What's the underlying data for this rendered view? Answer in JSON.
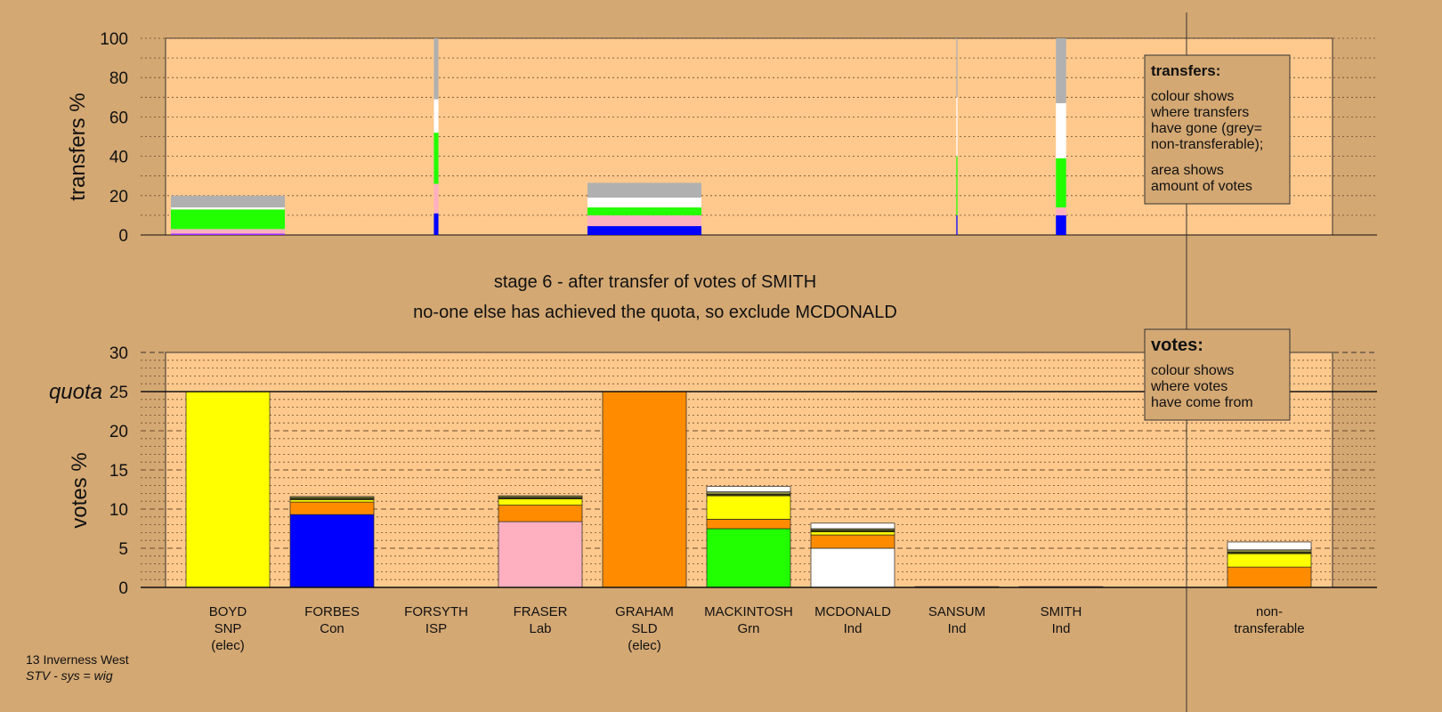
{
  "stage": {
    "line1": "stage 6 - after transfer of votes of SMITH",
    "line2": "no-one else has achieved the quota, so exclude MCDONALD"
  },
  "footer": {
    "line1": "13 Inverness West",
    "line2": "STV - sys = wig"
  },
  "legend_transfers": {
    "title": "transfers:",
    "lines1": [
      "colour shows",
      "where transfers",
      "have gone (grey=",
      "non-transferable);"
    ],
    "lines2": [
      "area shows",
      "amount of votes"
    ]
  },
  "legend_votes": {
    "title": "votes:",
    "lines": [
      "colour shows",
      "where votes",
      "have come from"
    ]
  },
  "colors": {
    "page_bg": "#d4a873",
    "plot_bg": "#ffc98d",
    "SNP": "#ffff00",
    "Con": "#0000ff",
    "ISP": "#9b30ff",
    "Lab": "#ffb0c0",
    "SLD": "#ff8c00",
    "Grn": "#22ff00",
    "Ind": "#ffffff",
    "Ind2": "#3a3a00",
    "Ind3": "#8b8b40",
    "nontransferable": "#b0b0b0"
  },
  "chart_data": [
    {
      "type": "bar",
      "chart": "votes",
      "ylabel": "votes %",
      "ylim": [
        0,
        30
      ],
      "yticks": [
        0,
        5,
        10,
        15,
        20,
        25,
        30
      ],
      "quota": 25,
      "quota_label": "quota",
      "categories": [
        {
          "name": "BOYD",
          "party": "SNP",
          "note": "(elec)"
        },
        {
          "name": "FORBES",
          "party": "Con",
          "note": ""
        },
        {
          "name": "FORSYTH",
          "party": "ISP",
          "note": ""
        },
        {
          "name": "FRASER",
          "party": "Lab",
          "note": ""
        },
        {
          "name": "GRAHAM",
          "party": "SLD",
          "note": "(elec)"
        },
        {
          "name": "MACKINTOSH",
          "party": "Grn",
          "note": ""
        },
        {
          "name": "MCDONALD",
          "party": "Ind",
          "note": ""
        },
        {
          "name": "SANSUM",
          "party": "Ind",
          "note": ""
        },
        {
          "name": "SMITH",
          "party": "Ind",
          "note": ""
        },
        {
          "name": "non-",
          "party": "transferable",
          "note": ""
        }
      ],
      "stacks": [
        [
          {
            "from": "SNP",
            "value": 25.0
          }
        ],
        [
          {
            "from": "Con",
            "value": 9.3
          },
          {
            "from": "SLD",
            "value": 1.6
          },
          {
            "from": "SNP",
            "value": 0.3
          },
          {
            "from": "Ind2",
            "value": 0.2
          },
          {
            "from": "Ind3",
            "value": 0.2
          }
        ],
        [],
        [
          {
            "from": "Lab",
            "value": 8.4
          },
          {
            "from": "SLD",
            "value": 2.1
          },
          {
            "from": "SNP",
            "value": 0.8
          },
          {
            "from": "Ind2",
            "value": 0.2
          },
          {
            "from": "Ind3",
            "value": 0.2
          }
        ],
        [
          {
            "from": "SLD",
            "value": 25.0
          }
        ],
        [
          {
            "from": "Grn",
            "value": 7.5
          },
          {
            "from": "SLD",
            "value": 1.2
          },
          {
            "from": "SNP",
            "value": 3.0
          },
          {
            "from": "Ind2",
            "value": 0.2
          },
          {
            "from": "Ind3",
            "value": 0.3
          },
          {
            "from": "Ind",
            "value": 0.7
          }
        ],
        [
          {
            "from": "Ind",
            "value": 5.0
          },
          {
            "from": "SLD",
            "value": 1.7
          },
          {
            "from": "SNP",
            "value": 0.4
          },
          {
            "from": "Ind2",
            "value": 0.2
          },
          {
            "from": "Ind3",
            "value": 0.2
          },
          {
            "from": "Ind",
            "value": 0.7
          }
        ],
        [
          {
            "from": "Ind",
            "value": 0.1
          }
        ],
        [
          {
            "from": "Ind",
            "value": 0.1
          }
        ],
        [
          {
            "from": "SLD",
            "value": 2.6
          },
          {
            "from": "SNP",
            "value": 1.7
          },
          {
            "from": "Ind2",
            "value": 0.2
          },
          {
            "from": "Ind3",
            "value": 0.3
          },
          {
            "from": "Ind",
            "value": 1.0
          }
        ]
      ]
    },
    {
      "type": "bar",
      "chart": "transfers",
      "ylabel": "transfers %",
      "ylim": [
        0,
        100
      ],
      "yticks": [
        0,
        20,
        40,
        60,
        80,
        100
      ],
      "transfers": [
        {
          "candidate": "BOYD",
          "width_share": 1.0,
          "segments": [
            {
              "to": "ISP",
              "value": 0.7
            },
            {
              "to": "Lab",
              "value": 2.3
            },
            {
              "to": "Grn",
              "value": 10.0
            },
            {
              "to": "Ind",
              "value": 1.0
            },
            {
              "to": "nontransferable",
              "value": 6.0
            }
          ]
        },
        {
          "candidate": "FORSYTH",
          "width_share": 0.04,
          "segments": [
            {
              "to": "Con",
              "value": 11.0
            },
            {
              "to": "Lab",
              "value": 15.0
            },
            {
              "to": "Grn",
              "value": 26.0
            },
            {
              "to": "Ind",
              "value": 17.0
            },
            {
              "to": "nontransferable",
              "value": 31.0
            }
          ]
        },
        {
          "candidate": "GRAHAM",
          "width_share": 1.0,
          "segments": [
            {
              "to": "Con",
              "value": 4.5
            },
            {
              "to": "Lab",
              "value": 5.5
            },
            {
              "to": "Grn",
              "value": 4.0
            },
            {
              "to": "Ind",
              "value": 5.0
            },
            {
              "to": "nontransferable",
              "value": 7.5
            }
          ]
        },
        {
          "candidate": "SANSUM",
          "width_share": 0.01,
          "segments": [
            {
              "to": "Con",
              "value": 10.0
            },
            {
              "to": "Grn",
              "value": 30.0
            },
            {
              "to": "Ind",
              "value": 30.0
            },
            {
              "to": "nontransferable",
              "value": 30.0
            }
          ]
        },
        {
          "candidate": "SMITH",
          "width_share": 0.09,
          "segments": [
            {
              "to": "Con",
              "value": 10.0
            },
            {
              "to": "Lab",
              "value": 4.0
            },
            {
              "to": "Grn",
              "value": 25.0
            },
            {
              "to": "Ind",
              "value": 28.0
            },
            {
              "to": "nontransferable",
              "value": 33.0
            }
          ]
        }
      ]
    }
  ]
}
